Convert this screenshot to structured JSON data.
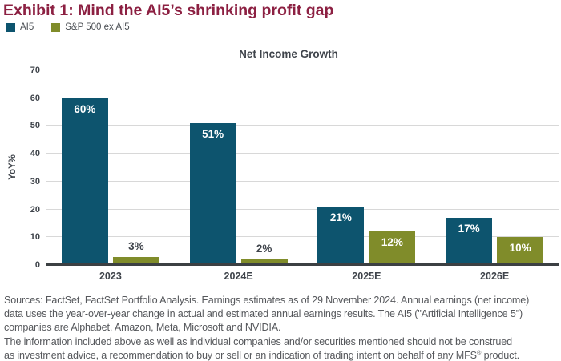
{
  "title": "Exhibit 1: Mind the AI5’s shrinking profit gap",
  "legend": {
    "items": [
      {
        "label": "AI5",
        "color": "#0d546e"
      },
      {
        "label": "S&P 500 ex AI5",
        "color": "#808c2a"
      }
    ]
  },
  "chart_data": {
    "type": "bar",
    "title": "Net Income Growth",
    "xlabel": "",
    "ylabel": "YoY%",
    "categories": [
      "2023",
      "2024E",
      "2025E",
      "2026E"
    ],
    "series": [
      {
        "name": "AI5",
        "color": "#0d546e",
        "values": [
          60,
          51,
          21,
          17
        ],
        "labels": [
          "60%",
          "51%",
          "21%",
          "17%"
        ]
      },
      {
        "name": "S&P 500 ex AI5",
        "color": "#808c2a",
        "values": [
          3,
          2,
          12,
          10
        ],
        "labels": [
          "3%",
          "2%",
          "12%",
          "10%"
        ]
      }
    ],
    "ylim": [
      0,
      70
    ],
    "ytick_step": 10,
    "grid": "horizontal",
    "legend_position": "top-left"
  },
  "footer": {
    "lines": [
      "Sources: FactSet, FactSet Portfolio Analysis. Earnings estimates as of 29 November 2024. Annual earnings (net income)",
      "data uses the year-over-year change in actual and estimated annual earnings results. The AI5 (\"Artificial Intelligence 5\")",
      "companies are Alphabet, Amazon, Meta, Microsoft and NVIDIA.",
      "The information included above as well as individual companies and/or securities mentioned should not be construed"
    ],
    "last_line": {
      "pre": "as investment advice, a recommendation to buy or sell or an indication of trading intent on behalf of any MFS",
      "sup": "®",
      "post": " product."
    }
  },
  "colors": {
    "title": "#8c2042",
    "ai5_bar": "#0d546e",
    "sp500_bar": "#808c2a",
    "axis_text": "#3f444b",
    "footer_text": "#56585c",
    "gridline": "#d8d8d8",
    "baseline": "#3c4043",
    "background": "#ffffff"
  }
}
